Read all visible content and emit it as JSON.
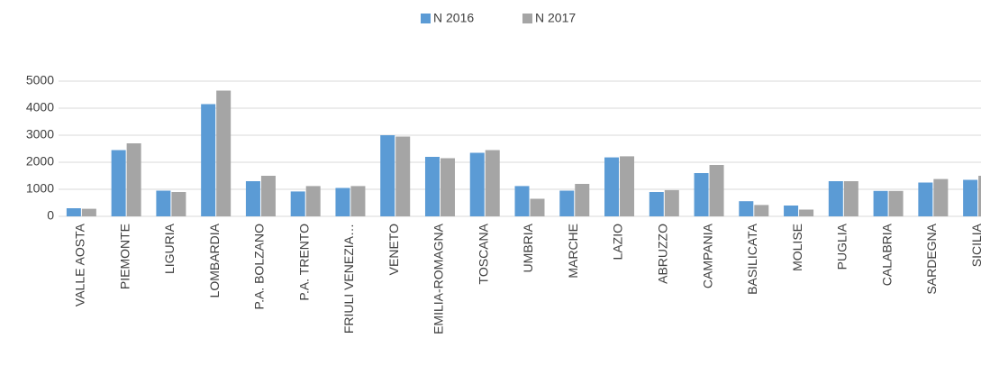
{
  "chart_data": {
    "type": "bar",
    "categories": [
      "VALLE AOSTA",
      "PIEMONTE",
      "LIGURIA",
      "LOMBARDIA",
      "P.A. BOLZANO",
      "P.A. TRENTO",
      "FRIULI VENEZIA…",
      "VENETO",
      "EMILIA-ROMAGNA",
      "TOSCANA",
      "UMBRIA",
      "MARCHE",
      "LAZIO",
      "ABRUZZO",
      "CAMPANIA",
      "BASILICATA",
      "MOLISE",
      "PUGLIA",
      "CALABRIA",
      "SARDEGNA",
      "SICILIA"
    ],
    "series": [
      {
        "name": "N 2016",
        "color": "#5b9bd5",
        "values": [
          300,
          2450,
          950,
          4150,
          1300,
          920,
          1050,
          3000,
          2200,
          2350,
          1120,
          950,
          2180,
          900,
          1600,
          560,
          400,
          1300,
          940,
          1250,
          1350
        ]
      },
      {
        "name": "N 2017",
        "color": "#a5a5a5",
        "values": [
          280,
          2700,
          900,
          4650,
          1500,
          1120,
          1120,
          2950,
          2150,
          2450,
          650,
          1200,
          2220,
          970,
          1900,
          420,
          250,
          1300,
          940,
          1380,
          1500
        ]
      }
    ],
    "ylim": [
      0,
      5000
    ],
    "yticks": [
      0,
      1000,
      2000,
      3000,
      4000,
      5000
    ],
    "grid": true,
    "legend": "top"
  }
}
